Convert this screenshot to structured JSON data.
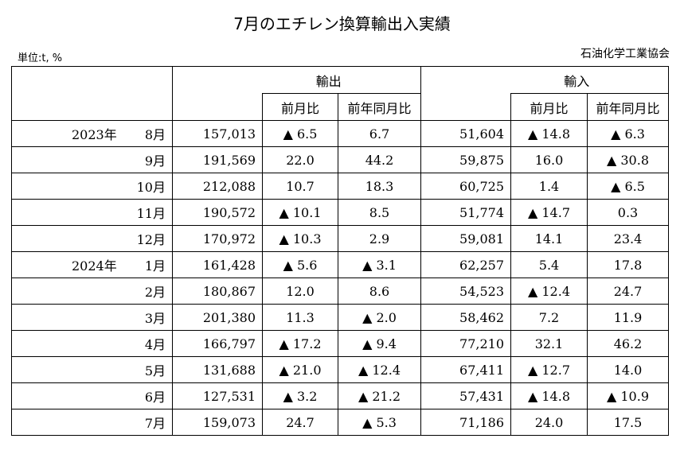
{
  "title": "7月のエチレン換算輸出入実績",
  "unit": "単位:t, %",
  "source": "石油化学工業協会",
  "headers": {
    "export": "輸出",
    "import": "輸入",
    "mom": "前月比",
    "yoy": "前年同月比"
  },
  "rows": [
    {
      "year": "2023年",
      "month": "8月",
      "exp": "157,013",
      "exp_mom": "▲ 6.5",
      "exp_yoy": "6.7",
      "imp": "51,604",
      "imp_mom": "▲ 14.8",
      "imp_yoy": "▲ 6.3"
    },
    {
      "year": "",
      "month": "9月",
      "exp": "191,569",
      "exp_mom": "22.0",
      "exp_yoy": "44.2",
      "imp": "59,875",
      "imp_mom": "16.0",
      "imp_yoy": "▲ 30.8"
    },
    {
      "year": "",
      "month": "10月",
      "exp": "212,088",
      "exp_mom": "10.7",
      "exp_yoy": "18.3",
      "imp": "60,725",
      "imp_mom": "1.4",
      "imp_yoy": "▲ 6.5"
    },
    {
      "year": "",
      "month": "11月",
      "exp": "190,572",
      "exp_mom": "▲ 10.1",
      "exp_yoy": "8.5",
      "imp": "51,774",
      "imp_mom": "▲ 14.7",
      "imp_yoy": "0.3"
    },
    {
      "year": "",
      "month": "12月",
      "exp": "170,972",
      "exp_mom": "▲ 10.3",
      "exp_yoy": "2.9",
      "imp": "59,081",
      "imp_mom": "14.1",
      "imp_yoy": "23.4"
    },
    {
      "year": "2024年",
      "month": "1月",
      "exp": "161,428",
      "exp_mom": "▲ 5.6",
      "exp_yoy": "▲ 3.1",
      "imp": "62,257",
      "imp_mom": "5.4",
      "imp_yoy": "17.8"
    },
    {
      "year": "",
      "month": "2月",
      "exp": "180,867",
      "exp_mom": "12.0",
      "exp_yoy": "8.6",
      "imp": "54,523",
      "imp_mom": "▲ 12.4",
      "imp_yoy": "24.7"
    },
    {
      "year": "",
      "month": "3月",
      "exp": "201,380",
      "exp_mom": "11.3",
      "exp_yoy": "▲ 2.0",
      "imp": "58,462",
      "imp_mom": "7.2",
      "imp_yoy": "11.9"
    },
    {
      "year": "",
      "month": "4月",
      "exp": "166,797",
      "exp_mom": "▲ 17.2",
      "exp_yoy": "▲ 9.4",
      "imp": "77,210",
      "imp_mom": "32.1",
      "imp_yoy": "46.2"
    },
    {
      "year": "",
      "month": "5月",
      "exp": "131,688",
      "exp_mom": "▲ 21.0",
      "exp_yoy": "▲ 12.4",
      "imp": "67,411",
      "imp_mom": "▲ 12.7",
      "imp_yoy": "14.0"
    },
    {
      "year": "",
      "month": "6月",
      "exp": "127,531",
      "exp_mom": "▲ 3.2",
      "exp_yoy": "▲ 21.2",
      "imp": "57,431",
      "imp_mom": "▲ 14.8",
      "imp_yoy": "▲ 10.9"
    },
    {
      "year": "",
      "month": "7月",
      "exp": "159,073",
      "exp_mom": "24.7",
      "exp_yoy": "▲ 5.3",
      "imp": "71,186",
      "imp_mom": "24.0",
      "imp_yoy": "17.5"
    }
  ]
}
